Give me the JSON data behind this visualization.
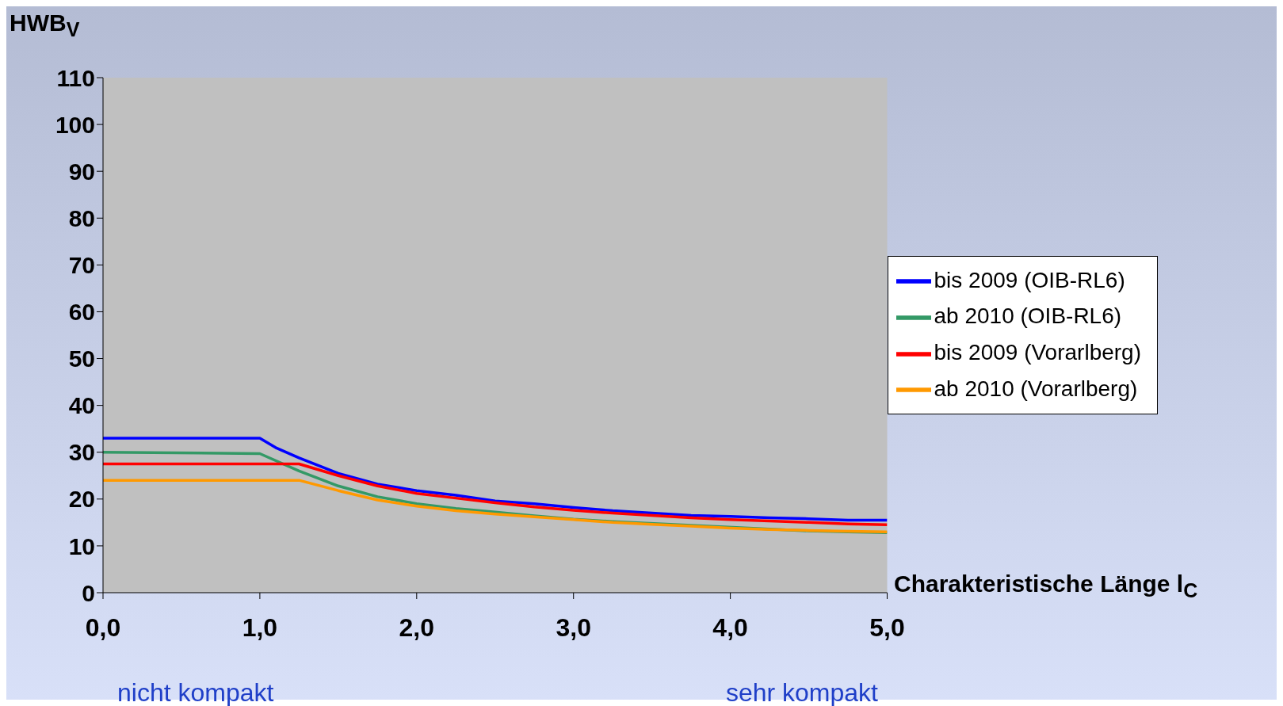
{
  "chart_data": {
    "type": "line",
    "ylabel": "HWB$_{V}$",
    "xlabel": "Charakteristische Länge l$_{C}$",
    "annotations": [
      "nicht kompakt",
      "sehr kompakt"
    ],
    "xlim": [
      0,
      5
    ],
    "xticks": [
      {
        "value": 0,
        "label": "0,0"
      },
      {
        "value": 1,
        "label": "1,0"
      },
      {
        "value": 2,
        "label": "2,0"
      },
      {
        "value": 3,
        "label": "3,0"
      },
      {
        "value": 4,
        "label": "4,0"
      },
      {
        "value": 5,
        "label": "5,0"
      }
    ],
    "ylim": [
      0,
      110
    ],
    "yticks": [
      0,
      10,
      20,
      30,
      40,
      50,
      60,
      70,
      80,
      90,
      100,
      110
    ],
    "legend": "right",
    "line_style": "solid",
    "marker": "none",
    "series": [
      {
        "name": "bis 2009 (OIB-RL6)",
        "color": "#0000ff",
        "x": [
          0,
          1,
          1.1,
          1.25,
          1.5,
          1.75,
          2,
          2.25,
          2.5,
          2.75,
          3,
          3.25,
          3.5,
          3.75,
          4,
          4.25,
          4.5,
          4.75,
          5
        ],
        "values": [
          33,
          33,
          31,
          28.8,
          25.5,
          23.2,
          21.8,
          20.8,
          19.6,
          19,
          18.2,
          17.5,
          17,
          16.5,
          16.3,
          16,
          15.8,
          15.5,
          15.5
        ]
      },
      {
        "name": "ab 2010 (OIB-RL6)",
        "color": "#339966",
        "x": [
          0,
          1,
          1.25,
          1.5,
          1.75,
          2,
          2.25,
          2.5,
          2.75,
          3,
          3.25,
          3.5,
          3.75,
          4,
          4.25,
          4.5,
          4.75,
          5
        ],
        "values": [
          30,
          29.7,
          26,
          22.8,
          20.5,
          19,
          18,
          17.2,
          16.4,
          15.7,
          15.2,
          null,
          null,
          null,
          null,
          13.2,
          13,
          12.8
        ]
      },
      {
        "name": "bis 2009 (Vorarlberg)",
        "color": "#ff0000",
        "x": [
          0,
          1.25,
          1.5,
          1.75,
          2,
          2.25,
          2.5,
          2.75,
          3,
          3.25,
          3.5,
          3.75,
          4,
          4.25,
          4.5,
          4.75,
          5
        ],
        "values": [
          27.5,
          27.5,
          25,
          22.8,
          21.2,
          20.2,
          19.2,
          18.3,
          17.6,
          17,
          16.5,
          16,
          15.6,
          15.3,
          15,
          14.7,
          14.5
        ]
      },
      {
        "name": "ab 2010 (Vorarlberg)",
        "color": "#ff9900",
        "x": [
          0,
          1.25,
          1.5,
          1.75,
          2,
          2.25,
          2.5,
          2.75,
          3,
          3.25,
          3.5,
          3.75,
          4,
          4.25,
          4.5,
          4.75,
          5
        ],
        "values": [
          24,
          24,
          21.8,
          19.8,
          18.5,
          17.5,
          16.8,
          16.2,
          15.6,
          15,
          14.6,
          14.2,
          13.8,
          13.5,
          13.3,
          13.1,
          13
        ]
      }
    ]
  }
}
